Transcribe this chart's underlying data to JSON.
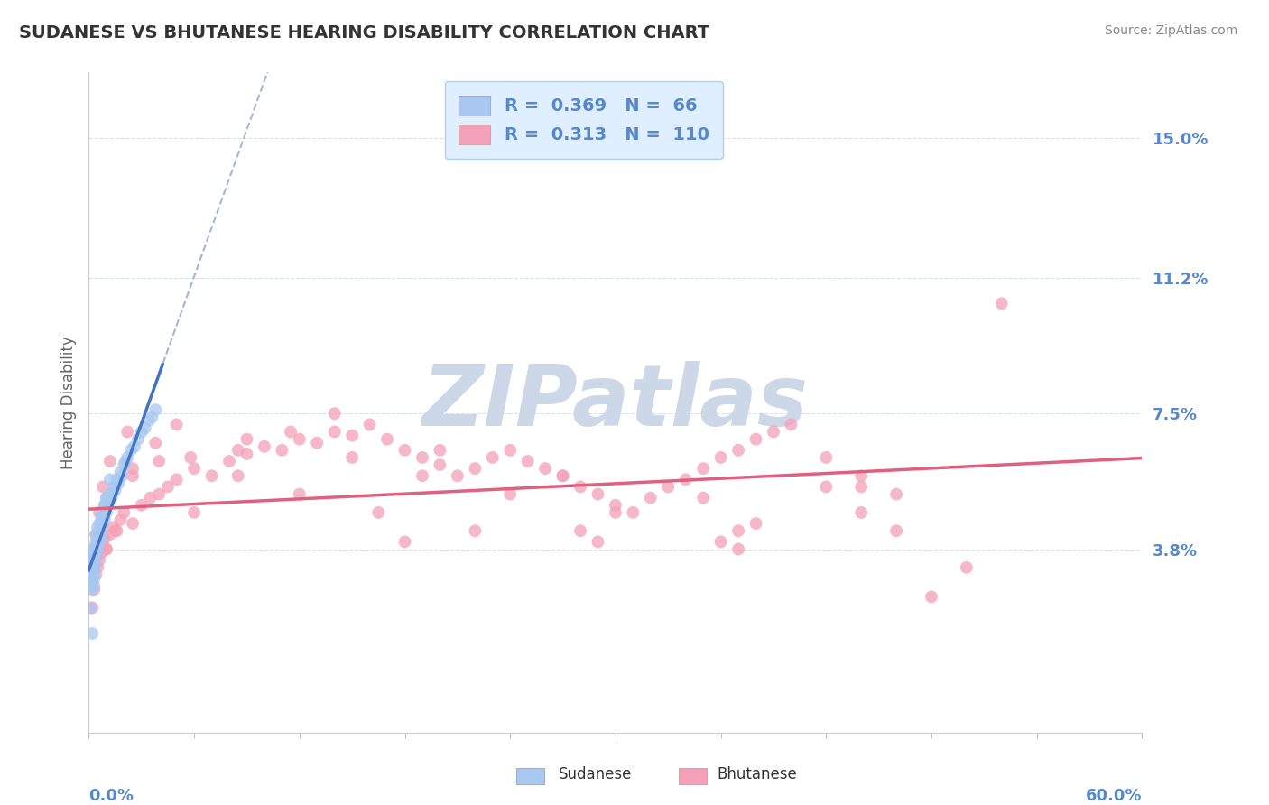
{
  "title": "SUDANESE VS BHUTANESE HEARING DISABILITY CORRELATION CHART",
  "source": "Source: ZipAtlas.com",
  "ylabel": "Hearing Disability",
  "sudanese_R": 0.369,
  "sudanese_N": 66,
  "bhutanese_R": 0.313,
  "bhutanese_N": 110,
  "sudanese_color": "#a8c8f0",
  "sudanese_line_color": "#4472c4",
  "bhutanese_color": "#f4a0b8",
  "bhutanese_line_color": "#e06080",
  "dashed_line_color": "#a0b8d0",
  "watermark": "ZIPatlas",
  "watermark_color": "#ccd8e8",
  "background_color": "#ffffff",
  "grid_color": "#d8e0ec",
  "title_color": "#333333",
  "axis_label_color": "#5588cc",
  "legend_facecolor": "#ddeeff",
  "legend_edgecolor": "#aaccee",
  "xmin": 0.0,
  "xmax": 0.6,
  "ymin": -0.012,
  "ymax": 0.168,
  "yticks": [
    0.038,
    0.075,
    0.112,
    0.15
  ],
  "ytick_labels": [
    "3.8%",
    "7.5%",
    "11.2%",
    "15.0%"
  ],
  "sudanese_x": [
    0.001,
    0.001,
    0.001,
    0.001,
    0.002,
    0.002,
    0.002,
    0.002,
    0.002,
    0.002,
    0.003,
    0.003,
    0.003,
    0.003,
    0.003,
    0.004,
    0.004,
    0.004,
    0.004,
    0.005,
    0.005,
    0.005,
    0.006,
    0.006,
    0.006,
    0.007,
    0.007,
    0.007,
    0.008,
    0.008,
    0.009,
    0.009,
    0.01,
    0.01,
    0.011,
    0.012,
    0.013,
    0.014,
    0.015,
    0.016,
    0.017,
    0.018,
    0.019,
    0.02,
    0.021,
    0.022,
    0.024,
    0.026,
    0.028,
    0.03,
    0.032,
    0.034,
    0.036,
    0.038,
    0.001,
    0.002,
    0.003,
    0.004,
    0.005,
    0.006,
    0.007,
    0.008,
    0.009,
    0.01,
    0.012,
    0.002
  ],
  "sudanese_y": [
    0.03,
    0.028,
    0.032,
    0.035,
    0.034,
    0.031,
    0.033,
    0.035,
    0.027,
    0.038,
    0.036,
    0.033,
    0.03,
    0.038,
    0.032,
    0.035,
    0.04,
    0.037,
    0.042,
    0.038,
    0.04,
    0.044,
    0.042,
    0.045,
    0.04,
    0.043,
    0.047,
    0.041,
    0.045,
    0.048,
    0.046,
    0.05,
    0.048,
    0.052,
    0.05,
    0.053,
    0.052,
    0.055,
    0.054,
    0.057,
    0.056,
    0.059,
    0.058,
    0.061,
    0.062,
    0.063,
    0.065,
    0.066,
    0.068,
    0.07,
    0.071,
    0.073,
    0.074,
    0.076,
    0.022,
    0.029,
    0.028,
    0.038,
    0.042,
    0.043,
    0.045,
    0.048,
    0.05,
    0.052,
    0.057,
    0.015
  ],
  "bhutanese_x": [
    0.001,
    0.001,
    0.002,
    0.002,
    0.003,
    0.003,
    0.004,
    0.004,
    0.005,
    0.005,
    0.006,
    0.006,
    0.007,
    0.008,
    0.009,
    0.01,
    0.012,
    0.014,
    0.016,
    0.018,
    0.02,
    0.025,
    0.03,
    0.035,
    0.04,
    0.045,
    0.05,
    0.06,
    0.07,
    0.08,
    0.09,
    0.1,
    0.11,
    0.12,
    0.13,
    0.14,
    0.15,
    0.16,
    0.17,
    0.18,
    0.19,
    0.2,
    0.21,
    0.22,
    0.23,
    0.24,
    0.25,
    0.26,
    0.27,
    0.28,
    0.29,
    0.3,
    0.31,
    0.32,
    0.33,
    0.34,
    0.35,
    0.36,
    0.37,
    0.38,
    0.39,
    0.4,
    0.42,
    0.44,
    0.46,
    0.002,
    0.004,
    0.008,
    0.015,
    0.025,
    0.04,
    0.06,
    0.085,
    0.115,
    0.15,
    0.19,
    0.24,
    0.3,
    0.37,
    0.44,
    0.01,
    0.025,
    0.05,
    0.09,
    0.14,
    0.2,
    0.27,
    0.35,
    0.44,
    0.002,
    0.006,
    0.012,
    0.022,
    0.038,
    0.058,
    0.085,
    0.12,
    0.165,
    0.22,
    0.29,
    0.37,
    0.46,
    0.36,
    0.28,
    0.18,
    0.5,
    0.42,
    0.48,
    0.38,
    0.52
  ],
  "bhutanese_y": [
    0.03,
    0.032,
    0.028,
    0.035,
    0.033,
    0.027,
    0.036,
    0.031,
    0.038,
    0.033,
    0.04,
    0.035,
    0.037,
    0.039,
    0.041,
    0.038,
    0.042,
    0.044,
    0.043,
    0.046,
    0.048,
    0.045,
    0.05,
    0.052,
    0.053,
    0.055,
    0.057,
    0.06,
    0.058,
    0.062,
    0.064,
    0.066,
    0.065,
    0.068,
    0.067,
    0.07,
    0.069,
    0.072,
    0.068,
    0.065,
    0.063,
    0.061,
    0.058,
    0.06,
    0.063,
    0.065,
    0.062,
    0.06,
    0.058,
    0.055,
    0.053,
    0.05,
    0.048,
    0.052,
    0.055,
    0.057,
    0.06,
    0.063,
    0.065,
    0.068,
    0.07,
    0.072,
    0.063,
    0.058,
    0.053,
    0.022,
    0.042,
    0.055,
    0.043,
    0.058,
    0.062,
    0.048,
    0.065,
    0.07,
    0.063,
    0.058,
    0.053,
    0.048,
    0.043,
    0.055,
    0.038,
    0.06,
    0.072,
    0.068,
    0.075,
    0.065,
    0.058,
    0.052,
    0.048,
    0.033,
    0.048,
    0.062,
    0.07,
    0.067,
    0.063,
    0.058,
    0.053,
    0.048,
    0.043,
    0.04,
    0.038,
    0.043,
    0.04,
    0.043,
    0.04,
    0.033,
    0.055,
    0.025,
    0.045,
    0.105
  ]
}
